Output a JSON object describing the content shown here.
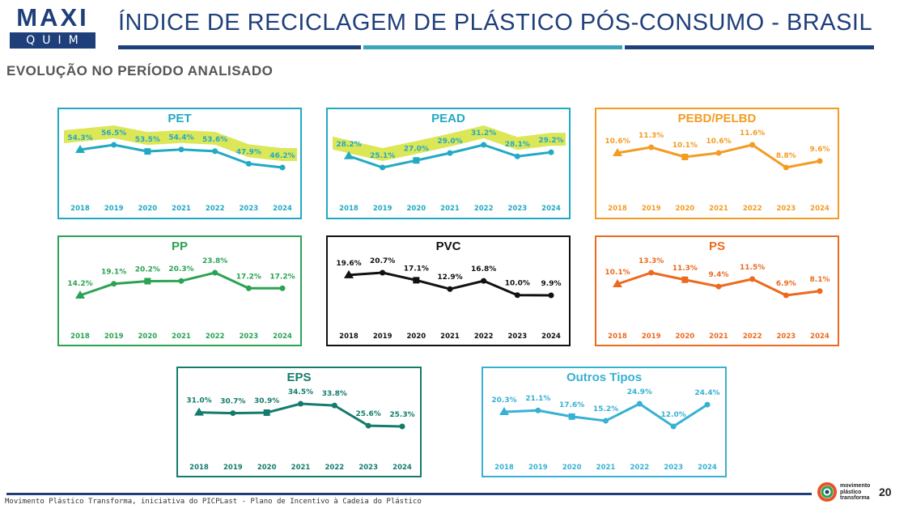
{
  "header": {
    "logo_top": "MAXI",
    "logo_bottom": "QUIM",
    "title": "ÍNDICE DE RECICLAGEM DE PLÁSTICO PÓS-CONSUMO - BRASIL",
    "subtitle": "EVOLUÇÃO NO PERÍODO ANALISADO"
  },
  "colors": {
    "navy": "#1f3f7a",
    "teal_bar": "#3aa6bb",
    "highlight": "#d6e33a"
  },
  "chart_data": [
    {
      "type": "line",
      "title": "PET",
      "color": "#22a9c4",
      "highlight": true,
      "categories": [
        "2018",
        "2019",
        "2020",
        "2021",
        "2022",
        "2023",
        "2024"
      ],
      "values": [
        54.3,
        56.5,
        53.5,
        54.4,
        53.6,
        47.9,
        46.2
      ],
      "labels": [
        "54.3%",
        "56.5%",
        "53.5%",
        "54.4%",
        "53.6%",
        "47.9%",
        "46.2%"
      ]
    },
    {
      "type": "line",
      "title": "PEAD",
      "color": "#22a9c4",
      "highlight": true,
      "categories": [
        "2018",
        "2019",
        "2020",
        "2021",
        "2022",
        "2023",
        "2024"
      ],
      "values": [
        28.2,
        25.1,
        27.0,
        29.0,
        31.2,
        28.1,
        29.2
      ],
      "labels": [
        "28.2%",
        "25.1%",
        "27.0%",
        "29.0%",
        "31.2%",
        "28.1%",
        "29.2%"
      ]
    },
    {
      "type": "line",
      "title": "PEBD/PELBD",
      "color": "#f39c24",
      "highlight": false,
      "categories": [
        "2018",
        "2019",
        "2020",
        "2021",
        "2022",
        "2023",
        "2024"
      ],
      "values": [
        10.6,
        11.3,
        10.1,
        10.6,
        11.6,
        8.8,
        9.6
      ],
      "labels": [
        "10.6%",
        "11.3%",
        "10.1%",
        "10.6%",
        "11.6%",
        "8.8%",
        "9.6%"
      ]
    },
    {
      "type": "line",
      "title": "PP",
      "color": "#2aa353",
      "highlight": false,
      "categories": [
        "2018",
        "2019",
        "2020",
        "2021",
        "2022",
        "2023",
        "2024"
      ],
      "values": [
        14.2,
        19.1,
        20.2,
        20.3,
        23.8,
        17.2,
        17.2
      ],
      "labels": [
        "14.2%",
        "19.1%",
        "20.2%",
        "20.3%",
        "23.8%",
        "17.2%",
        "17.2%"
      ]
    },
    {
      "type": "line",
      "title": "PVC",
      "color": "#111111",
      "highlight": false,
      "categories": [
        "2018",
        "2019",
        "2020",
        "2021",
        "2022",
        "2023",
        "2024"
      ],
      "values": [
        19.6,
        20.7,
        17.1,
        12.9,
        16.8,
        10.0,
        9.9
      ],
      "labels": [
        "19.6%",
        "20.7%",
        "17.1%",
        "12.9%",
        "16.8%",
        "10.0%",
        "9.9%"
      ]
    },
    {
      "type": "line",
      "title": "PS",
      "color": "#ec6a1e",
      "highlight": false,
      "categories": [
        "2018",
        "2019",
        "2020",
        "2021",
        "2022",
        "2023",
        "2024"
      ],
      "values": [
        10.1,
        13.3,
        11.3,
        9.4,
        11.5,
        6.9,
        8.1
      ],
      "labels": [
        "10.1%",
        "13.3%",
        "11.3%",
        "9.4%",
        "11.5%",
        "6.9%",
        "8.1%"
      ]
    },
    {
      "type": "line",
      "title": "EPS",
      "color": "#137c6c",
      "highlight": false,
      "categories": [
        "2018",
        "2019",
        "2020",
        "2021",
        "2022",
        "2023",
        "2024"
      ],
      "values": [
        31.0,
        30.7,
        30.9,
        34.5,
        33.8,
        25.6,
        25.3
      ],
      "labels": [
        "31.0%",
        "30.7%",
        "30.9%",
        "34.5%",
        "33.8%",
        "25.6%",
        "25.3%"
      ]
    },
    {
      "type": "line",
      "title": "Outros Tipos",
      "color": "#37b1d3",
      "highlight": false,
      "categories": [
        "2018",
        "2019",
        "2020",
        "2021",
        "2022",
        "2023",
        "2024"
      ],
      "values": [
        20.3,
        21.1,
        17.6,
        15.2,
        24.9,
        12.0,
        24.4
      ],
      "labels": [
        "20.3%",
        "21.1%",
        "17.6%",
        "15.2%",
        "24.9%",
        "12.0%",
        "24.4%"
      ]
    }
  ],
  "footer": {
    "text": "Movimento Plástico Transforma, iniciativa do PICPLast - Plano de Incentivo à Cadeia do Plástico",
    "logo_text": [
      "movimento",
      "plástico",
      "transforma"
    ],
    "page_number": "20"
  }
}
